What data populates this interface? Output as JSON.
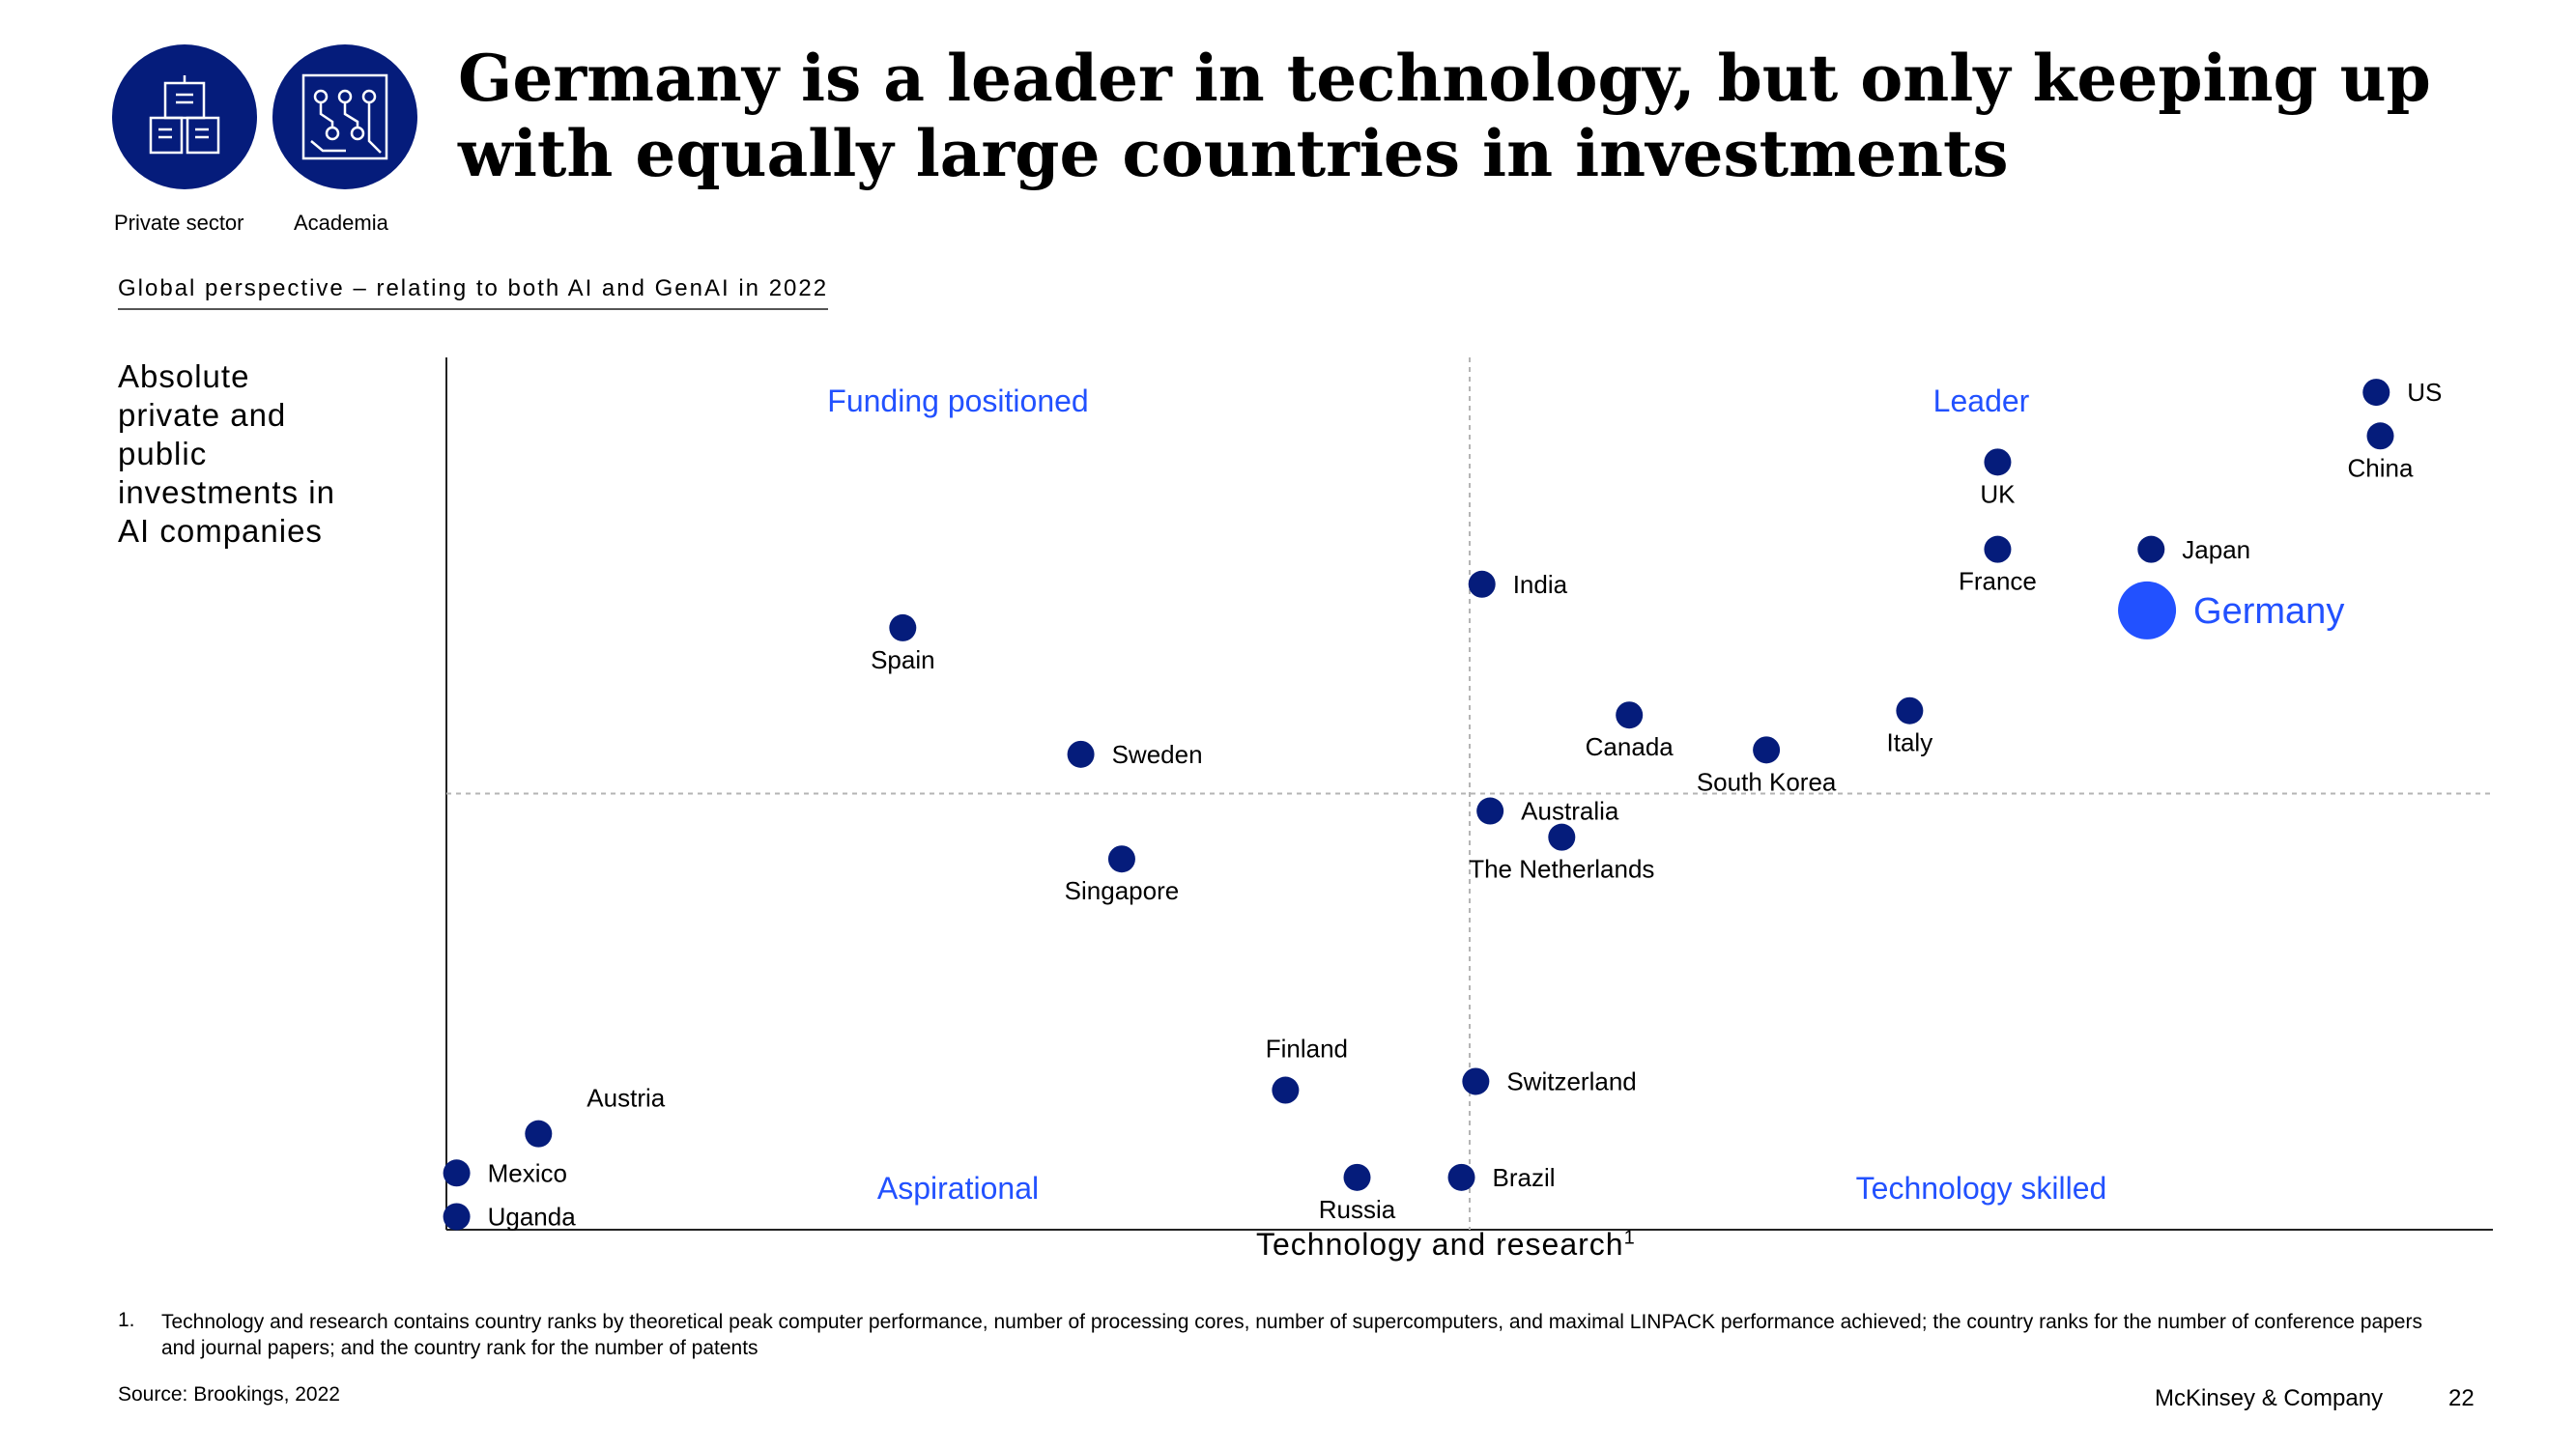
{
  "header": {
    "title": "Germany is a leader in technology, but only keeping up with equally large countries in investments",
    "icons": [
      {
        "icon": "building-icon",
        "label": "Private sector"
      },
      {
        "icon": "circuit-icon",
        "label": "Academia"
      }
    ],
    "subtitle": "Global perspective – relating to both AI and GenAI in 2022"
  },
  "colors": {
    "navy": "#051c7b",
    "highlight": "#2251ff",
    "quadrant_label": "#2251ff"
  },
  "chart_data": {
    "type": "scatter",
    "xlabel": "Technology and research",
    "xlabel_footnote": "1",
    "ylabel": "Absolute private and public investments in AI companies",
    "xlim": [
      0,
      100
    ],
    "ylim": [
      0,
      100
    ],
    "divider_x": 50,
    "divider_y": 50,
    "quadrants": [
      {
        "label": "Funding positioned",
        "position": "top-left"
      },
      {
        "label": "Leader",
        "position": "top-right"
      },
      {
        "label": "Aspirational",
        "position": "bottom-left"
      },
      {
        "label": "Technology skilled",
        "position": "bottom-right"
      }
    ],
    "points": [
      {
        "name": "US",
        "x": 94.3,
        "y": 96.0,
        "label_pos": "right"
      },
      {
        "name": "China",
        "x": 94.5,
        "y": 91.0,
        "label_pos": "below"
      },
      {
        "name": "UK",
        "x": 75.8,
        "y": 88.0,
        "label_pos": "below"
      },
      {
        "name": "France",
        "x": 75.8,
        "y": 78.0,
        "label_pos": "below"
      },
      {
        "name": "Japan",
        "x": 83.3,
        "y": 78.0,
        "label_pos": "right"
      },
      {
        "name": "Germany",
        "x": 83.1,
        "y": 71.0,
        "label_pos": "right",
        "highlight": true
      },
      {
        "name": "India",
        "x": 50.6,
        "y": 74.0,
        "label_pos": "right"
      },
      {
        "name": "Spain",
        "x": 22.3,
        "y": 69.0,
        "label_pos": "below"
      },
      {
        "name": "Canada",
        "x": 57.8,
        "y": 59.0,
        "label_pos": "below"
      },
      {
        "name": "Italy",
        "x": 71.5,
        "y": 59.5,
        "label_pos": "below"
      },
      {
        "name": "South Korea",
        "x": 64.5,
        "y": 55.0,
        "label_pos": "below"
      },
      {
        "name": "Sweden",
        "x": 31.0,
        "y": 54.5,
        "label_pos": "right"
      },
      {
        "name": "Australia",
        "x": 51.0,
        "y": 48.0,
        "label_pos": "right"
      },
      {
        "name": "The Netherlands",
        "x": 54.5,
        "y": 45.0,
        "label_pos": "below"
      },
      {
        "name": "Singapore",
        "x": 33.0,
        "y": 42.5,
        "label_pos": "below"
      },
      {
        "name": "Finland",
        "x": 41.0,
        "y": 16.0,
        "label_pos": "above"
      },
      {
        "name": "Switzerland",
        "x": 50.3,
        "y": 17.0,
        "label_pos": "right"
      },
      {
        "name": "Austria",
        "x": 4.5,
        "y": 11.0,
        "label_pos": "above-right"
      },
      {
        "name": "Brazil",
        "x": 49.6,
        "y": 6.0,
        "label_pos": "right"
      },
      {
        "name": "Russia",
        "x": 44.5,
        "y": 6.0,
        "label_pos": "below"
      },
      {
        "name": "Mexico",
        "x": 0.5,
        "y": 6.5,
        "label_pos": "right"
      },
      {
        "name": "Uganda",
        "x": 0.5,
        "y": 1.5,
        "label_pos": "right"
      }
    ]
  },
  "footnote": {
    "number": "1.",
    "text": "Technology and research contains country ranks by theoretical peak computer performance, number of processing cores, number of supercomputers, and maximal LINPACK performance achieved; the country ranks for the number of conference papers and journal papers; and the country rank for the number of patents"
  },
  "source": "Source: Brookings, 2022",
  "brand": "McKinsey & Company",
  "page_number": "22"
}
